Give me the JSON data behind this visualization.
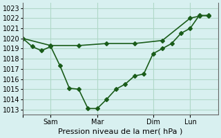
{
  "background_color": "#d8f0f0",
  "grid_color": "#b0d8c8",
  "line_color": "#1a5c1a",
  "xlabel": "Pression niveau de la mer( hPa )",
  "ylim": [
    1012.5,
    1023.5
  ],
  "yticks": [
    1013,
    1014,
    1015,
    1016,
    1017,
    1018,
    1019,
    1020,
    1021,
    1022,
    1023
  ],
  "xtick_positions": [
    0,
    36,
    96,
    168,
    216
  ],
  "xtick_labels": [
    "",
    "Sam",
    "Mar",
    "Dim",
    "Lun"
  ],
  "xlim": [
    0,
    252
  ],
  "line1_x": [
    0,
    12,
    24,
    36,
    48,
    60,
    72,
    84,
    96,
    108,
    120,
    132,
    144,
    156,
    168,
    180,
    192,
    204,
    216,
    228,
    240
  ],
  "line1_y": [
    1020.0,
    1019.2,
    1018.8,
    1019.2,
    1017.3,
    1015.1,
    1015.0,
    1013.1,
    1013.1,
    1014.0,
    1015.0,
    1015.5,
    1016.3,
    1016.5,
    1018.5,
    1019.0,
    1019.5,
    1020.5,
    1021.0,
    1022.3,
    1022.2
  ],
  "line2_x": [
    0,
    36,
    72,
    108,
    144,
    180,
    216,
    228,
    240
  ],
  "line2_y": [
    1020.0,
    1019.3,
    1019.3,
    1019.5,
    1019.5,
    1019.8,
    1022.0,
    1022.2,
    1022.3
  ],
  "marker": "D",
  "marker_size": 3,
  "line_width": 1.2,
  "font_size": 8,
  "tick_font_size": 7
}
